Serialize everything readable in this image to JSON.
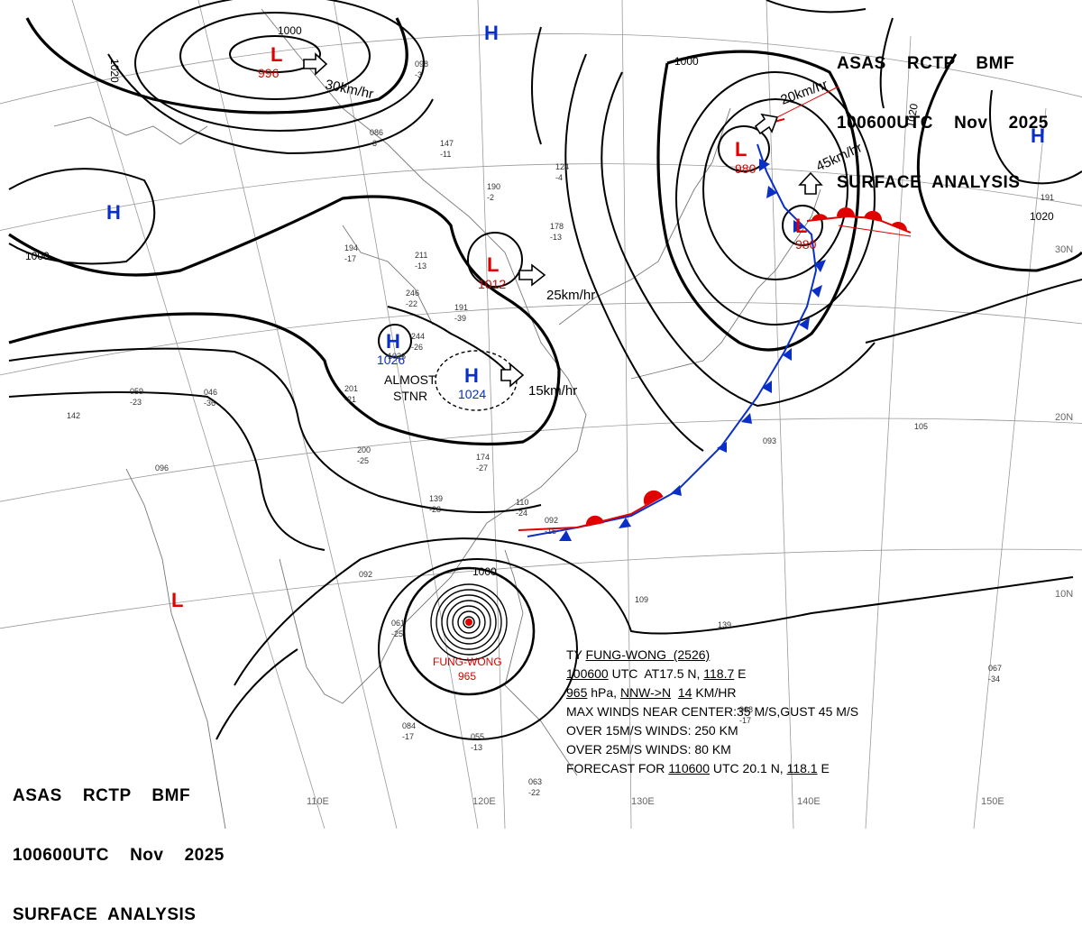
{
  "header_top": {
    "line1": "ASAS    RCTP    BMF",
    "line2": "100600UTC    Nov    2025",
    "line3": "SURFACE  ANALYSIS"
  },
  "header_bottom": {
    "line1": "ASAS    RCTP    BMF",
    "line2": "100600UTC    Nov    2025",
    "line3": "SURFACE  ANALYSIS"
  },
  "lon_labels": [
    "110E",
    "120E",
    "130E",
    "140E",
    "150E"
  ],
  "lat_labels": [
    "30N",
    "20N",
    "10N"
  ],
  "isobar_labels": {
    "a": "1000",
    "b": "1020",
    "c": "1000",
    "d": "1020",
    "e": "1020",
    "f": "1000"
  },
  "systems": [
    {
      "type": "L",
      "pressure": "996"
    },
    {
      "type": "H",
      "pressure": ""
    },
    {
      "type": "H",
      "pressure": ""
    },
    {
      "type": "L",
      "pressure": "1012"
    },
    {
      "type": "H",
      "pressure": "1026"
    },
    {
      "type": "H",
      "pressure": "1024"
    },
    {
      "type": "L",
      "pressure": "980"
    },
    {
      "type": "L",
      "pressure": "980"
    },
    {
      "type": "H",
      "pressure": ""
    },
    {
      "type": "L",
      "pressure": ""
    }
  ],
  "movements": {
    "m1": "30km/hr",
    "m2": "25km/hr",
    "m3": "15km/hr",
    "m4": "20km/hr",
    "m5": "45km/hr"
  },
  "almost_stnr": {
    "line1": "ALMOST",
    "line2": "STNR"
  },
  "typhoon": {
    "name": "FUNG-WONG",
    "pressure": "965",
    "line1_a": "TY ",
    "line1_b": "FUNG-WONG  (2526)",
    "line2_a": "100600",
    "line2_b": " UTC  AT17.5 N, ",
    "line2_c": "118.7",
    "line2_d": " E",
    "line3_a": "965",
    "line3_b": " hPa, ",
    "line3_c": "NNW->N",
    "line3_d": "  ",
    "line3_e": "14",
    "line3_f": " KM/HR",
    "line4": "MAX WINDS NEAR CENTER:35 M/S,GUST 45 M/S",
    "line5": "OVER 15M/S WINDS: 250 KM",
    "line6": "OVER 25M/S WINDS: 80 KM",
    "line7_a": "FORECAST FOR ",
    "line7_b": "110600",
    "line7_c": " UTC 20.1 N, ",
    "line7_d": "118.1",
    "line7_e": " E"
  },
  "stations": [
    "1026",
    "244",
    "-26",
    "246",
    "-22",
    "211",
    "-13",
    "194",
    "-17",
    "178",
    "-13",
    "190",
    "-2",
    "124",
    "-4",
    "191",
    "-39",
    "201",
    "-21",
    "200",
    "-25",
    "174",
    "-27",
    "139",
    "-28",
    "110",
    "-24",
    "092",
    "-15",
    "059",
    "-23",
    "046",
    "-36",
    "142",
    "096",
    "092",
    "061",
    "-25",
    "084",
    "-17",
    "055",
    "-13",
    "063",
    "-22",
    "109",
    "139",
    "093",
    "105",
    "191",
    "068",
    "-17",
    "067",
    "-34",
    "098",
    "-3",
    "086",
    "-3",
    "147",
    "-11"
  ],
  "colors": {
    "low": "#e00000",
    "high": "#0a2fc8",
    "isobar": "#000000",
    "coast": "#777777",
    "grid": "#999999"
  }
}
